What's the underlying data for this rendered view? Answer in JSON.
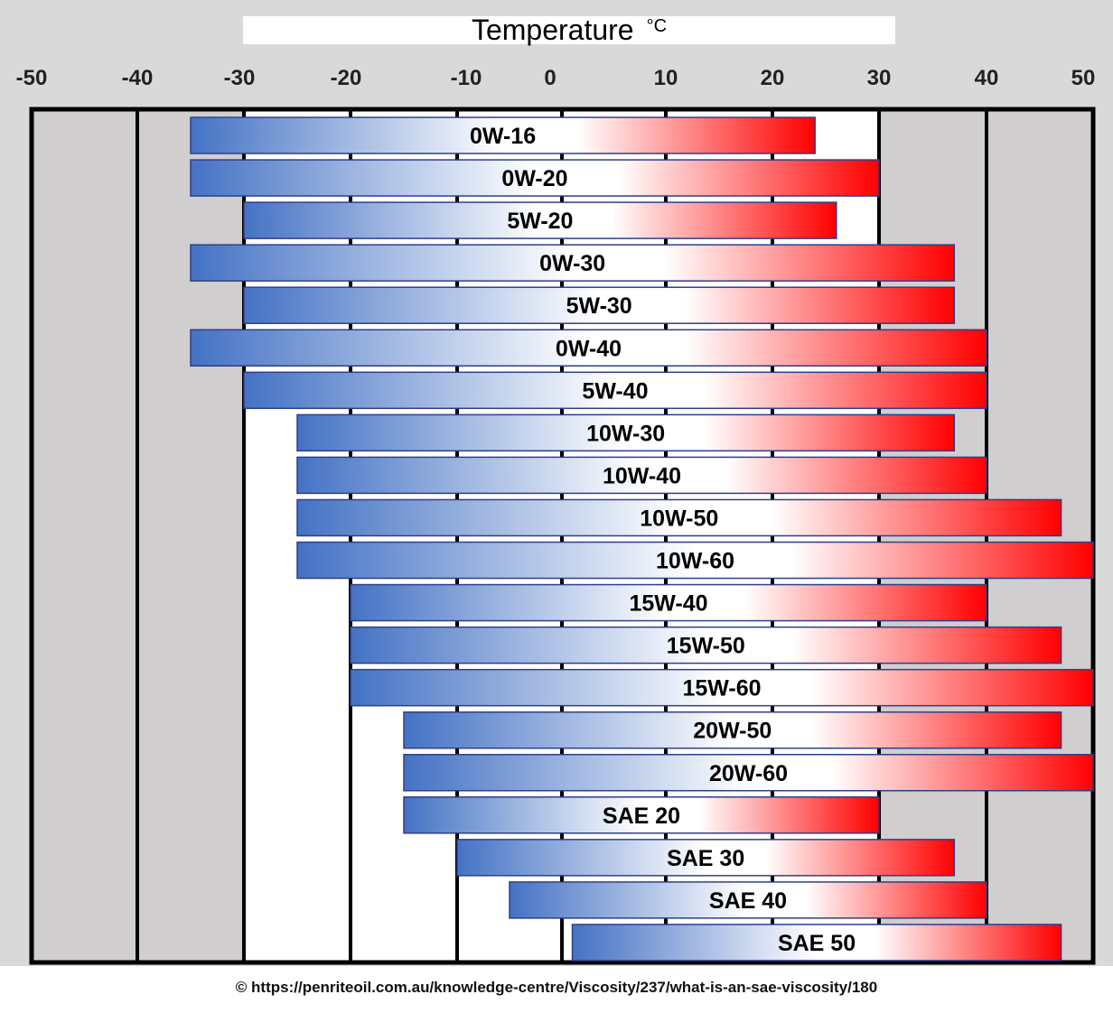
{
  "chart_data": {
    "type": "bar",
    "title": "Temperature",
    "title_unit": "°C",
    "x_ticks": [
      -50,
      -40,
      -30,
      -20,
      -10,
      0,
      10,
      20,
      30,
      40,
      50
    ],
    "xlim": [
      -50,
      50
    ],
    "grid": true,
    "colors": {
      "cold": "#4472c4",
      "middle": "#ffffff",
      "hot": "#ff0000",
      "frame": "#000000",
      "background": "#d9d9d9",
      "cell": "#d0cece"
    },
    "grades": [
      {
        "label": "0W-16",
        "min": -35,
        "max": 24
      },
      {
        "label": "0W-20",
        "min": -35,
        "max": 30
      },
      {
        "label": "5W-20",
        "min": -30,
        "max": 26
      },
      {
        "label": "0W-30",
        "min": -35,
        "max": 37
      },
      {
        "label": "5W-30",
        "min": -30,
        "max": 37
      },
      {
        "label": "0W-40",
        "min": -35,
        "max": 40
      },
      {
        "label": "5W-40",
        "min": -30,
        "max": 40
      },
      {
        "label": "10W-30",
        "min": -25,
        "max": 37
      },
      {
        "label": "10W-40",
        "min": -25,
        "max": 40
      },
      {
        "label": "10W-50",
        "min": -25,
        "max": 47
      },
      {
        "label": "10W-60",
        "min": -25,
        "max": 50
      },
      {
        "label": "15W-40",
        "min": -20,
        "max": 40
      },
      {
        "label": "15W-50",
        "min": -20,
        "max": 47
      },
      {
        "label": "15W-60",
        "min": -20,
        "max": 50
      },
      {
        "label": "20W-50",
        "min": -15,
        "max": 47
      },
      {
        "label": "20W-60",
        "min": -15,
        "max": 50
      },
      {
        "label": "SAE 20",
        "min": -15,
        "max": 30
      },
      {
        "label": "SAE 30",
        "min": -10,
        "max": 37
      },
      {
        "label": "SAE 40",
        "min": -5,
        "max": 40
      },
      {
        "label": "SAE 50",
        "min": 1,
        "max": 47
      }
    ]
  },
  "footer": {
    "copyright": "© https://penriteoil.com.au/knowledge-centre/Viscosity/237/what-is-an-sae-viscosity/180"
  }
}
